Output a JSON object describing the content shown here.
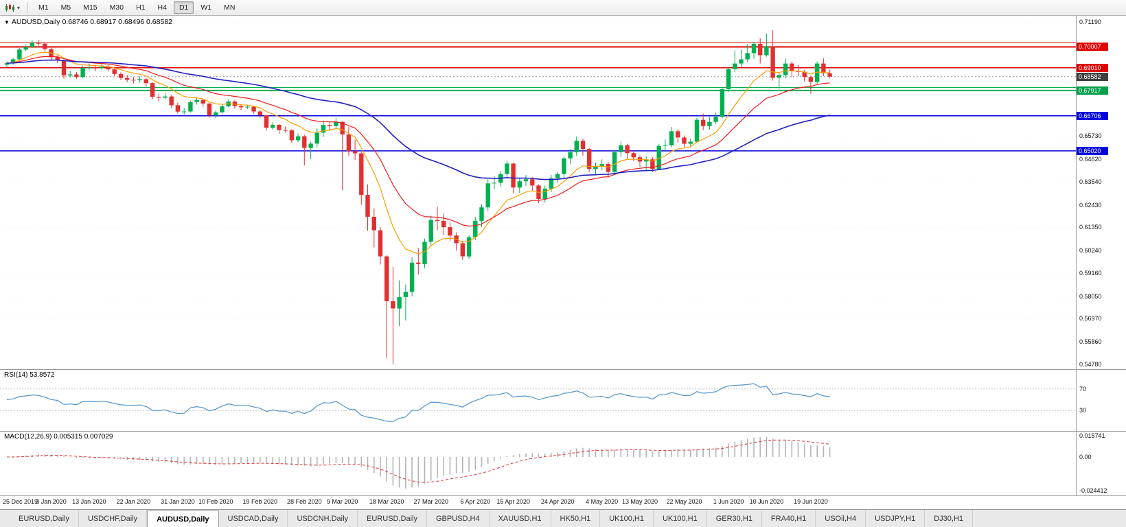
{
  "toolbar": {
    "chart_icon": "chart-type-icon",
    "dropdown_caret": "▾",
    "timeframes": [
      "M1",
      "M5",
      "M15",
      "M30",
      "H1",
      "H4",
      "D1",
      "W1",
      "MN"
    ],
    "active_timeframe": "D1"
  },
  "main_chart": {
    "collapse_icon": "▼",
    "title": "AUDUSD,Daily",
    "ohlc": "0.68746 0.68917 0.68496 0.68582"
  },
  "chart_data": {
    "type": "candlestick",
    "symbol": "AUDUSD",
    "period": "Daily",
    "price_range": [
      0.5455,
      0.715
    ],
    "colors": {
      "up": "#00b050",
      "down": "#e03030"
    },
    "y_axis_ticks": [
      "0.71190",
      "0.65730",
      "0.64620",
      "0.63540",
      "0.62430",
      "0.61350",
      "0.60240",
      "0.59160",
      "0.58050",
      "0.56970",
      "0.55860",
      "0.54780"
    ],
    "horizontal_lines": [
      {
        "price": 0.7021,
        "color": "#e00000",
        "width": 1,
        "label": null,
        "label_bg": null
      },
      {
        "price": 0.70007,
        "color": "#e00000",
        "width": 2,
        "label": "0.70007",
        "label_bg": "#e00000"
      },
      {
        "price": 0.6901,
        "color": "#e00000",
        "width": 1.5,
        "label": "0.69010",
        "label_bg": "#e00000"
      },
      {
        "price": 0.6806,
        "color": "#00b050",
        "width": 1,
        "label": null,
        "label_bg": null
      },
      {
        "price": 0.67917,
        "color": "#00b050",
        "width": 2,
        "label": "0.67917",
        "label_bg": "#00a04a"
      },
      {
        "price": 0.66706,
        "color": "#0000e0",
        "width": 1.5,
        "label": "0.66706",
        "label_bg": "#0000e0"
      },
      {
        "price": 0.6502,
        "color": "#0000e0",
        "width": 1.5,
        "label": "0.65020",
        "label_bg": "#0000e0"
      }
    ],
    "current_price": {
      "value": 0.68582,
      "label": "0.68582",
      "label_bg": "#3f3f3f"
    },
    "moving_averages": [
      {
        "name": "ma-fast",
        "period": 10,
        "color": "#ff9c00",
        "width": 1.2
      },
      {
        "name": "ma-mid",
        "period": 21,
        "color": "#f01818",
        "width": 1.2
      },
      {
        "name": "ma-slow",
        "period": 55,
        "color": "#2020c0",
        "width": 1.6
      }
    ],
    "x_axis_ticks": [
      "25 Dec 2019",
      "3 Jan 2020",
      "13 Jan 2020",
      "22 Jan 2020",
      "31 Jan 2020",
      "10 Feb 2020",
      "19 Feb 2020",
      "28 Feb 2020",
      "9 Mar 2020",
      "18 Mar 2020",
      "27 Mar 2020",
      "6 Apr 2020",
      "15 Apr 2020",
      "24 Apr 2020",
      "4 May 2020",
      "13 May 2020",
      "22 May 2020",
      "1 Jun 2020",
      "10 Jun 2020",
      "19 Jun 2020"
    ],
    "candles": [
      [
        0.6915,
        0.6931,
        0.6904,
        0.6923
      ],
      [
        0.6923,
        0.6948,
        0.6916,
        0.6941
      ],
      [
        0.6941,
        0.6995,
        0.6936,
        0.6988
      ],
      [
        0.6988,
        0.7011,
        0.6981,
        0.7001
      ],
      [
        0.7001,
        0.7032,
        0.6996,
        0.7022
      ],
      [
        0.7022,
        0.7035,
        0.7006,
        0.7016
      ],
      [
        0.7016,
        0.7021,
        0.6979,
        0.699
      ],
      [
        0.699,
        0.6996,
        0.6934,
        0.6951
      ],
      [
        0.6951,
        0.6961,
        0.6924,
        0.6938
      ],
      [
        0.6938,
        0.6941,
        0.6849,
        0.6864
      ],
      [
        0.6864,
        0.6886,
        0.6854,
        0.6869
      ],
      [
        0.6869,
        0.6881,
        0.6847,
        0.6856
      ],
      [
        0.6856,
        0.6911,
        0.6851,
        0.6901
      ],
      [
        0.6901,
        0.6921,
        0.6889,
        0.6902
      ],
      [
        0.6902,
        0.6914,
        0.6885,
        0.6898
      ],
      [
        0.6898,
        0.6926,
        0.6892,
        0.6906
      ],
      [
        0.6906,
        0.6914,
        0.6882,
        0.6893
      ],
      [
        0.6893,
        0.6901,
        0.6861,
        0.6871
      ],
      [
        0.6871,
        0.6879,
        0.6842,
        0.6852
      ],
      [
        0.6852,
        0.6866,
        0.6831,
        0.6843
      ],
      [
        0.6843,
        0.6856,
        0.6826,
        0.6841
      ],
      [
        0.6841,
        0.6859,
        0.6829,
        0.6846
      ],
      [
        0.6846,
        0.6851,
        0.6809,
        0.6827
      ],
      [
        0.6827,
        0.6831,
        0.6749,
        0.6761
      ],
      [
        0.6761,
        0.6776,
        0.6739,
        0.6757
      ],
      [
        0.6757,
        0.6779,
        0.6747,
        0.6763
      ],
      [
        0.6763,
        0.6769,
        0.6709,
        0.6721
      ],
      [
        0.6721,
        0.6734,
        0.6681,
        0.669
      ],
      [
        0.669,
        0.6708,
        0.6677,
        0.6691
      ],
      [
        0.6691,
        0.6743,
        0.6686,
        0.6736
      ],
      [
        0.6736,
        0.6757,
        0.6724,
        0.6746
      ],
      [
        0.6746,
        0.6751,
        0.6715,
        0.6729
      ],
      [
        0.6729,
        0.6733,
        0.6661,
        0.6672
      ],
      [
        0.6672,
        0.6696,
        0.6659,
        0.6687
      ],
      [
        0.6687,
        0.6724,
        0.6681,
        0.6716
      ],
      [
        0.6716,
        0.6749,
        0.6711,
        0.6739
      ],
      [
        0.6739,
        0.6745,
        0.6704,
        0.6717
      ],
      [
        0.6717,
        0.6726,
        0.6699,
        0.6711
      ],
      [
        0.6711,
        0.6723,
        0.6702,
        0.6714
      ],
      [
        0.6714,
        0.6719,
        0.6679,
        0.6691
      ],
      [
        0.6691,
        0.6698,
        0.6661,
        0.6673
      ],
      [
        0.6673,
        0.6676,
        0.6599,
        0.6613
      ],
      [
        0.6613,
        0.6639,
        0.6604,
        0.6627
      ],
      [
        0.6627,
        0.6631,
        0.6584,
        0.6602
      ],
      [
        0.6602,
        0.6619,
        0.6589,
        0.6601
      ],
      [
        0.6601,
        0.6606,
        0.6541,
        0.6553
      ],
      [
        0.6553,
        0.6586,
        0.6544,
        0.6572
      ],
      [
        0.6572,
        0.6579,
        0.6433,
        0.6516
      ],
      [
        0.6516,
        0.6546,
        0.6462,
        0.6537
      ],
      [
        0.6537,
        0.6611,
        0.6519,
        0.6589
      ],
      [
        0.6589,
        0.6647,
        0.6569,
        0.6626
      ],
      [
        0.6626,
        0.6641,
        0.6599,
        0.6621
      ],
      [
        0.6621,
        0.6661,
        0.6609,
        0.6641
      ],
      [
        0.6641,
        0.6646,
        0.6313,
        0.6581
      ],
      [
        0.6581,
        0.6616,
        0.6479,
        0.6501
      ],
      [
        0.6501,
        0.6556,
        0.6459,
        0.649
      ],
      [
        0.649,
        0.6496,
        0.6244,
        0.6291
      ],
      [
        0.6291,
        0.6341,
        0.6119,
        0.6186
      ],
      [
        0.6186,
        0.6226,
        0.6039,
        0.6121
      ],
      [
        0.6121,
        0.6136,
        0.5957,
        0.5996
      ],
      [
        0.5996,
        0.6001,
        0.5509,
        0.5781
      ],
      [
        0.5781,
        0.5946,
        0.5478,
        0.5746
      ],
      [
        0.5746,
        0.5881,
        0.5661,
        0.5801
      ],
      [
        0.5801,
        0.5861,
        0.5689,
        0.5826
      ],
      [
        0.5826,
        0.5991,
        0.5804,
        0.5966
      ],
      [
        0.5966,
        0.6036,
        0.5909,
        0.5959
      ],
      [
        0.5959,
        0.6081,
        0.5939,
        0.6066
      ],
      [
        0.6066,
        0.6191,
        0.6044,
        0.6171
      ],
      [
        0.6171,
        0.6236,
        0.6119,
        0.6166
      ],
      [
        0.6166,
        0.6201,
        0.6099,
        0.6136
      ],
      [
        0.6136,
        0.6161,
        0.6069,
        0.6096
      ],
      [
        0.6096,
        0.6111,
        0.6024,
        0.6059
      ],
      [
        0.6059,
        0.6071,
        0.5979,
        0.5996
      ],
      [
        0.5996,
        0.6096,
        0.5984,
        0.6088
      ],
      [
        0.6088,
        0.6186,
        0.6074,
        0.6166
      ],
      [
        0.6166,
        0.6246,
        0.6139,
        0.6231
      ],
      [
        0.6231,
        0.6366,
        0.6214,
        0.6346
      ],
      [
        0.6346,
        0.6381,
        0.6319,
        0.6349
      ],
      [
        0.6349,
        0.6406,
        0.6329,
        0.6391
      ],
      [
        0.6391,
        0.6456,
        0.6374,
        0.6441
      ],
      [
        0.6441,
        0.6446,
        0.6299,
        0.6326
      ],
      [
        0.6326,
        0.6371,
        0.6301,
        0.6356
      ],
      [
        0.6356,
        0.6386,
        0.6334,
        0.6366
      ],
      [
        0.6366,
        0.6376,
        0.6309,
        0.6336
      ],
      [
        0.6336,
        0.6341,
        0.6252,
        0.6271
      ],
      [
        0.6271,
        0.6336,
        0.6254,
        0.6321
      ],
      [
        0.6321,
        0.6386,
        0.6304,
        0.6371
      ],
      [
        0.6371,
        0.6401,
        0.6349,
        0.6391
      ],
      [
        0.6391,
        0.6476,
        0.6371,
        0.6466
      ],
      [
        0.6466,
        0.6511,
        0.6439,
        0.6496
      ],
      [
        0.6496,
        0.6571,
        0.6479,
        0.6551
      ],
      [
        0.6551,
        0.6561,
        0.6479,
        0.6511
      ],
      [
        0.6511,
        0.6516,
        0.6399,
        0.6416
      ],
      [
        0.6416,
        0.6446,
        0.6391,
        0.6426
      ],
      [
        0.6426,
        0.6461,
        0.6409,
        0.6439
      ],
      [
        0.6439,
        0.6449,
        0.6374,
        0.6401
      ],
      [
        0.6401,
        0.6506,
        0.6389,
        0.6496
      ],
      [
        0.6496,
        0.6546,
        0.6474,
        0.6529
      ],
      [
        0.6529,
        0.6536,
        0.6461,
        0.6491
      ],
      [
        0.6491,
        0.6506,
        0.6454,
        0.6471
      ],
      [
        0.6471,
        0.6481,
        0.6424,
        0.6451
      ],
      [
        0.6451,
        0.6476,
        0.6402,
        0.6461
      ],
      [
        0.6461,
        0.6471,
        0.6401,
        0.6416
      ],
      [
        0.6416,
        0.6536,
        0.6409,
        0.6526
      ],
      [
        0.6526,
        0.6556,
        0.6504,
        0.6529
      ],
      [
        0.6529,
        0.6616,
        0.6519,
        0.6596
      ],
      [
        0.6596,
        0.6606,
        0.6541,
        0.6566
      ],
      [
        0.6566,
        0.6576,
        0.6519,
        0.6536
      ],
      [
        0.6536,
        0.6561,
        0.6521,
        0.6546
      ],
      [
        0.6546,
        0.6661,
        0.6539,
        0.6651
      ],
      [
        0.6651,
        0.6681,
        0.6601,
        0.6621
      ],
      [
        0.6621,
        0.6666,
        0.6604,
        0.6641
      ],
      [
        0.6641,
        0.6686,
        0.6629,
        0.6666
      ],
      [
        0.6666,
        0.6806,
        0.6659,
        0.6798
      ],
      [
        0.6798,
        0.6901,
        0.6784,
        0.6894
      ],
      [
        0.6894,
        0.6984,
        0.6879,
        0.6921
      ],
      [
        0.6921,
        0.6989,
        0.6904,
        0.6941
      ],
      [
        0.6941,
        0.7014,
        0.6929,
        0.6971
      ],
      [
        0.6971,
        0.7024,
        0.6944,
        0.7015
      ],
      [
        0.7015,
        0.7043,
        0.6921,
        0.6961
      ],
      [
        0.6961,
        0.7065,
        0.6954,
        0.7004
      ],
      [
        0.7004,
        0.7081,
        0.6839,
        0.6853
      ],
      [
        0.6853,
        0.6881,
        0.6799,
        0.6866
      ],
      [
        0.6866,
        0.6946,
        0.6849,
        0.6921
      ],
      [
        0.6921,
        0.6931,
        0.6854,
        0.6886
      ],
      [
        0.6886,
        0.6913,
        0.6861,
        0.6881
      ],
      [
        0.6881,
        0.6891,
        0.6834,
        0.6856
      ],
      [
        0.6856,
        0.6863,
        0.6776,
        0.6833
      ],
      [
        0.6833,
        0.6931,
        0.6824,
        0.6921
      ],
      [
        0.6921,
        0.6946,
        0.6861,
        0.6875
      ],
      [
        0.68746,
        0.68917,
        0.68496,
        0.68582
      ]
    ]
  },
  "rsi_panel": {
    "label": "RSI(14) 53.8572",
    "period": 14,
    "value": "53.8572",
    "levels": [
      "70",
      "30"
    ],
    "level_values": [
      70,
      30
    ],
    "color": "#4f94cd"
  },
  "macd_panel": {
    "label": "MACD(12,26,9) 0.005315 0.007029",
    "fast": 12,
    "slow": 26,
    "signal": 9,
    "axis_ticks": [
      "0.015741",
      "0.00",
      "-0.024412"
    ],
    "axis_tick_values": [
      0.015741,
      0,
      -0.024412
    ],
    "range": [
      -0.0255,
      0.017
    ],
    "hist_color": "#b4b4b4",
    "signal_color": "#e04040"
  },
  "tabs": {
    "active_index": 2,
    "items": [
      "EURUSD,Daily",
      "USDCHF,Daily",
      "AUDUSD,Daily",
      "USDCAD,Daily",
      "USDCNH,Daily",
      "EURUSD,Daily",
      "GBPUSD,H4",
      "XAUUSD,H1",
      "HK50,H1",
      "UK100,H1",
      "UK100,H1",
      "GER30,H1",
      "FRA40,H1",
      "USOil,H4",
      "USDJPY,H1",
      "DJ30,H1"
    ]
  }
}
